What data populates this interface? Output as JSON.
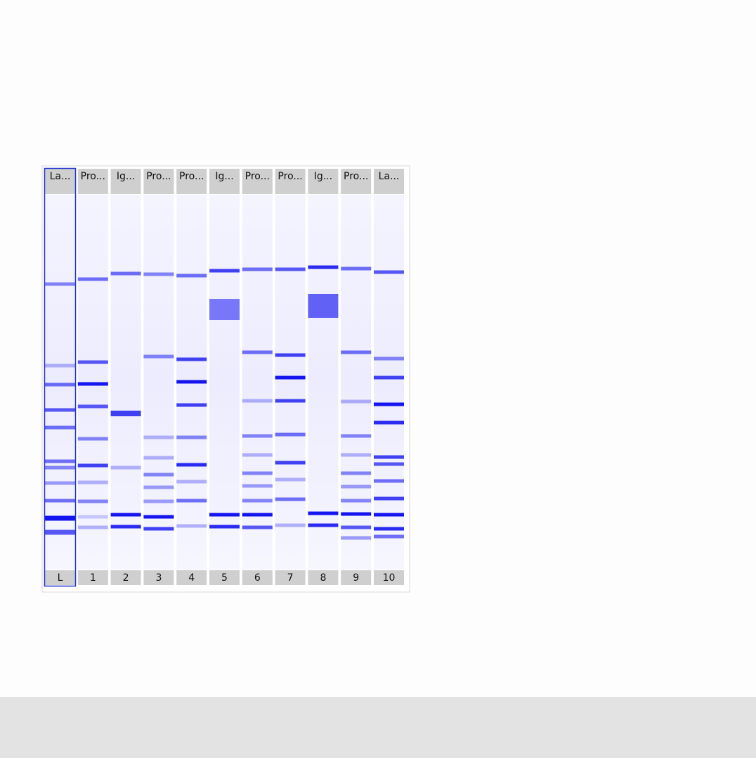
{
  "lanes": [
    {
      "header": "La...",
      "footer": "L"
    },
    {
      "header": "Pro...",
      "footer": "1"
    },
    {
      "header": "Ig...",
      "footer": "2"
    },
    {
      "header": "Pro...",
      "footer": "3"
    },
    {
      "header": "Pro...",
      "footer": "4"
    },
    {
      "header": "Ig...",
      "footer": "5"
    },
    {
      "header": "Pro...",
      "footer": "6"
    },
    {
      "header": "Pro...",
      "footer": "7"
    },
    {
      "header": "Ig...",
      "footer": "8"
    },
    {
      "header": "Pro...",
      "footer": "9"
    },
    {
      "header": "La...",
      "footer": "10"
    }
  ]
}
